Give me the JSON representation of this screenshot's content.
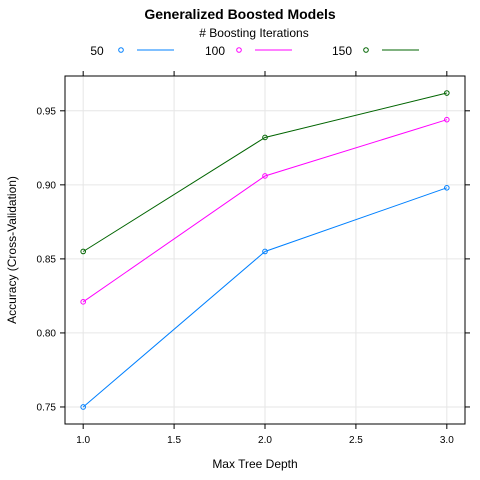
{
  "chart_data": {
    "type": "line",
    "title": "Generalized Boosted Models",
    "legend_title": "# Boosting Iterations",
    "legend_position": "top",
    "xlabel": "Max Tree Depth",
    "ylabel": "Accuracy (Cross-Validation)",
    "x": [
      1.0,
      2.0,
      3.0
    ],
    "x_ticks": [
      "1.0",
      "1.5",
      "2.0",
      "2.5",
      "3.0"
    ],
    "y_ticks": [
      "0.75",
      "0.80",
      "0.85",
      "0.90",
      "0.95"
    ],
    "xlim": [
      0.9,
      3.1
    ],
    "ylim": [
      0.7385,
      0.9735
    ],
    "grid": true,
    "series": [
      {
        "name": "50",
        "color": "#0080ff",
        "values": [
          0.75,
          0.855,
          0.898
        ]
      },
      {
        "name": "100",
        "color": "#ff00ff",
        "values": [
          0.821,
          0.906,
          0.944
        ]
      },
      {
        "name": "150",
        "color": "#006400",
        "values": [
          0.855,
          0.932,
          0.962
        ]
      }
    ]
  }
}
